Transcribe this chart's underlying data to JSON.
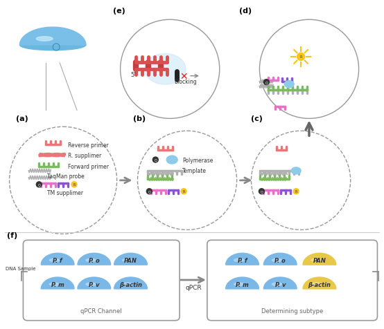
{
  "bg_color": "#ffffff",
  "panel_labels": [
    "(a)",
    "(b)",
    "(c)",
    "(d)",
    "(e)",
    "(f)"
  ],
  "color_red": "#e87878",
  "color_green": "#7abb5e",
  "color_pink": "#e870c8",
  "color_purple": "#8855cc",
  "color_gray": "#b0b0b0",
  "color_blue_particle": "#7abfe8",
  "color_yellow": "#f5c518",
  "dna_blue": "#7ab8e8",
  "dna_yellow": "#e8c848",
  "qpcr_label": "qPCR",
  "qpcr_channel_label": "qPCR Channel",
  "determining_label": "Determining subtype",
  "dna_sample_label": "DNA Sample",
  "panel_label_fontsize": 8,
  "legend_fontsize": 5.5
}
